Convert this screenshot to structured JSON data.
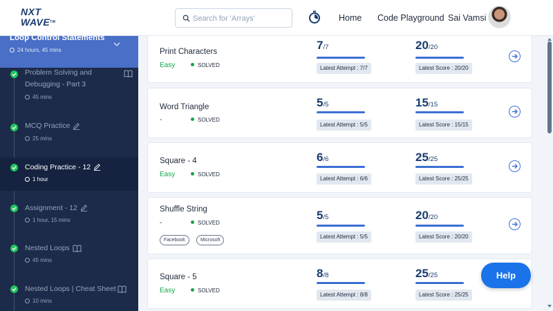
{
  "brand": {
    "line1": "NXT",
    "line2": "WAVE",
    "tm": "TM"
  },
  "search": {
    "placeholder": "Search for 'Arrays'"
  },
  "nav": {
    "home": "Home",
    "code_playground": "Code Playground",
    "user_name": "Sai Vamsi"
  },
  "sidebar": {
    "module_title": "Loop Control Statements",
    "module_time": "24 hours, 45 mins",
    "items": [
      {
        "title_line1": "Problem Solving and",
        "title_line2": "Debugging - Part 3",
        "time": "45 mins",
        "icon": "book-icon"
      },
      {
        "title_line1": "MCQ Practice",
        "time": "25 mins",
        "icon": "pencil-icon"
      },
      {
        "title_line1": "Coding Practice - 12",
        "time": "1 hour",
        "icon": "pencil-icon",
        "active": true
      },
      {
        "title_line1": "Assignment - 12",
        "time": "1 hour, 15 mins",
        "icon": "pencil-icon"
      },
      {
        "title_line1": "Nested Loops",
        "time": "45 mins",
        "icon": "book-icon"
      },
      {
        "title_line1": "Nested Loops | Cheat Sheet",
        "time": "10 mins",
        "icon": "book-icon"
      }
    ]
  },
  "problems": [
    {
      "title": "Print Characters",
      "difficulty": "Easy",
      "status": "SOLVED",
      "attempt": "7",
      "attempt_total": "/7",
      "attempt_label": "Latest Attempt : 7/7",
      "score": "20",
      "score_total": "/20",
      "score_label": "Latest Score : 20/20"
    },
    {
      "title": "Word Triangle",
      "difficulty": "-",
      "status": "SOLVED",
      "attempt": "5",
      "attempt_total": "/5",
      "attempt_label": "Latest Attempt : 5/5",
      "score": "15",
      "score_total": "/15",
      "score_label": "Latest Score : 15/15"
    },
    {
      "title": "Square - 4",
      "difficulty": "Easy",
      "status": "SOLVED",
      "attempt": "6",
      "attempt_total": "/6",
      "attempt_label": "Latest Attempt : 6/6",
      "score": "25",
      "score_total": "/25",
      "score_label": "Latest Score : 25/25"
    },
    {
      "title": "Shuffle String",
      "difficulty": "-",
      "status": "SOLVED",
      "attempt": "5",
      "attempt_total": "/5",
      "attempt_label": "Latest Attempt : 5/5",
      "score": "20",
      "score_total": "/20",
      "score_label": "Latest Score : 20/20",
      "tags": [
        "Facebook",
        "Microsoft"
      ]
    },
    {
      "title": "Square - 5",
      "difficulty": "Easy",
      "status": "SOLVED",
      "attempt": "8",
      "attempt_total": "/8",
      "attempt_label": "Latest Attempt : 8/8",
      "score": "25",
      "score_total": "/25",
      "score_label": "Latest Score : 25/25"
    }
  ],
  "help": {
    "label": "Help"
  },
  "colors": {
    "accent": "#3b6fd4",
    "sidebar_bg": "#1c2b4a",
    "module_header": "#4a6fc7",
    "solved_green": "#16a34a",
    "help_button": "#1a73e8"
  }
}
